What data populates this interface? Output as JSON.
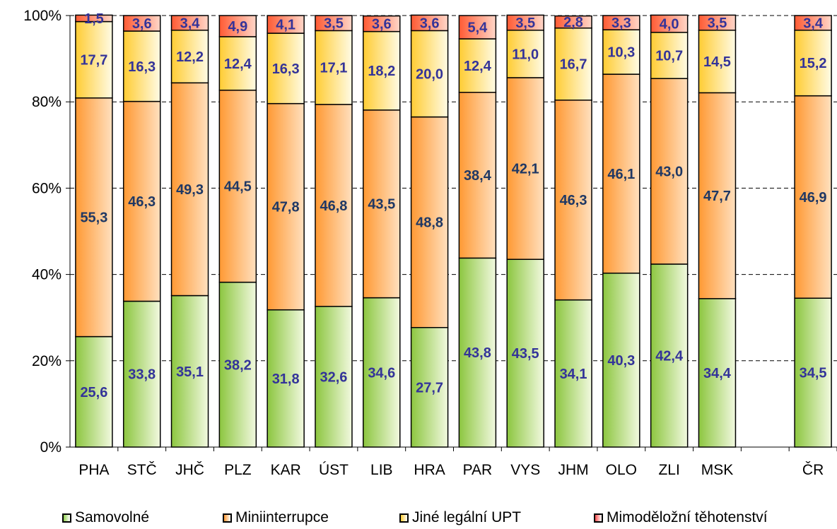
{
  "chart_data": {
    "type": "bar",
    "stacked": true,
    "percent": true,
    "categories": [
      "PHA",
      "STČ",
      "JHČ",
      "PLZ",
      "KAR",
      "ÚST",
      "LIB",
      "HRA",
      "PAR",
      "VYS",
      "JHM",
      "OLO",
      "ZLI",
      "MSK",
      "",
      "ČR"
    ],
    "series": [
      {
        "name": "Samovolné",
        "color": "#92D050",
        "label_color": "#333399",
        "values": [
          25.6,
          33.8,
          35.1,
          38.2,
          31.8,
          32.6,
          34.6,
          27.7,
          43.8,
          43.5,
          34.1,
          40.3,
          42.4,
          34.4,
          null,
          34.5
        ],
        "labels": [
          "25,6",
          "33,8",
          "35,1",
          "38,2",
          "31,8",
          "32,6",
          "34,6",
          "27,7",
          "43,8",
          "43,5",
          "34,1",
          "40,3",
          "42,4",
          "34,4",
          "",
          "34,5"
        ]
      },
      {
        "name": "Miniinterrupce",
        "color": "#FF9933",
        "label_color": "#1F3864",
        "values": [
          55.3,
          46.3,
          49.3,
          44.5,
          47.8,
          46.8,
          43.5,
          48.8,
          38.4,
          42.1,
          46.3,
          46.1,
          43.0,
          47.7,
          null,
          46.9
        ],
        "labels": [
          "55,3",
          "46,3",
          "49,3",
          "44,5",
          "47,8",
          "46,8",
          "43,5",
          "48,8",
          "38,4",
          "42,1",
          "46,3",
          "46,1",
          "43,0",
          "47,7",
          "",
          "46,9"
        ]
      },
      {
        "name": "Jiné legální UPT",
        "color": "#FFCC33",
        "label_color": "#333399",
        "values": [
          17.7,
          16.3,
          12.2,
          12.4,
          16.3,
          17.1,
          18.2,
          20.0,
          12.4,
          11.0,
          16.7,
          10.3,
          10.7,
          14.5,
          null,
          15.2
        ],
        "labels": [
          "17,7",
          "16,3",
          "12,2",
          "12,4",
          "16,3",
          "17,1",
          "18,2",
          "20,0",
          "12,4",
          "11,0",
          "16,7",
          "10,3",
          "10,7",
          "14,5",
          "",
          "15,2"
        ]
      },
      {
        "name": "Mimoděložní těhotenství",
        "color": "#FF5050",
        "label_color": "#333399",
        "values": [
          1.5,
          3.6,
          3.4,
          4.9,
          4.1,
          3.5,
          3.6,
          3.6,
          5.4,
          3.5,
          2.8,
          3.3,
          4.0,
          3.5,
          null,
          3.4
        ],
        "labels": [
          "1,5",
          "3,6",
          "3,4",
          "4,9",
          "4,1",
          "3,5",
          "3,6",
          "3,6",
          "5,4",
          "3,5",
          "2,8",
          "3,3",
          "4,0",
          "3,5",
          "",
          "3,4"
        ]
      }
    ],
    "y_ticks": [
      "0%",
      "20%",
      "40%",
      "60%",
      "80%",
      "100%"
    ],
    "ylim": [
      0,
      100
    ],
    "grid": "dashed horizontal",
    "legend_position": "bottom"
  }
}
